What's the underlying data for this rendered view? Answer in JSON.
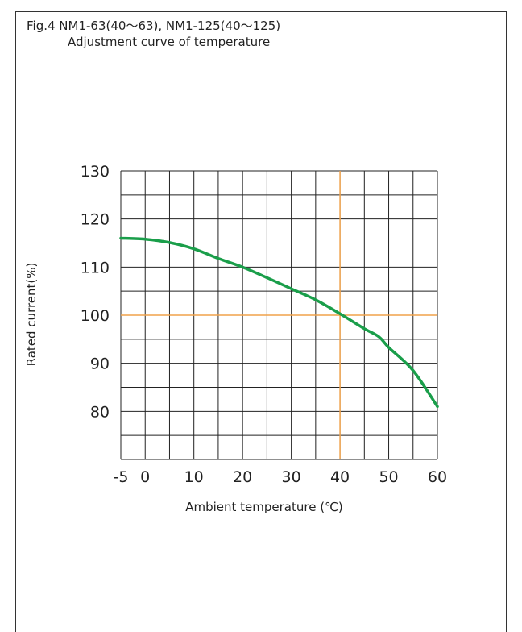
{
  "figure": {
    "title": "Fig.4 NM1-63(40～63), NM1-125(40～125)",
    "subtitle": "Adjustment curve of temperature"
  },
  "chart_data": {
    "type": "line",
    "title": "Adjustment curve of temperature",
    "xlabel": "Ambient temperature (℃)",
    "ylabel": "Rated current(%)",
    "xlim": [
      -5,
      60
    ],
    "ylim": [
      70,
      130
    ],
    "x_ticks": [
      "-5",
      "0",
      "10",
      "20",
      "30",
      "40",
      "50",
      "60"
    ],
    "y_ticks": [
      "130",
      "120",
      "110",
      "100",
      "90",
      "80"
    ],
    "grid": true,
    "reference_lines": [
      {
        "axis": "x",
        "value": 40,
        "color": "#f0a24a"
      },
      {
        "axis": "y",
        "value": 100,
        "color": "#f0a24a"
      }
    ],
    "series": [
      {
        "color": "#1a9e4a",
        "x": [
          -5,
          0,
          5,
          10,
          15,
          20,
          25,
          30,
          35,
          40,
          45,
          48,
          50,
          55,
          60
        ],
        "y": [
          116,
          115.8,
          115.1,
          113.8,
          111.8,
          110,
          107.8,
          105.5,
          103.2,
          100.3,
          97.2,
          95.5,
          93.3,
          88.5,
          81
        ]
      }
    ]
  }
}
